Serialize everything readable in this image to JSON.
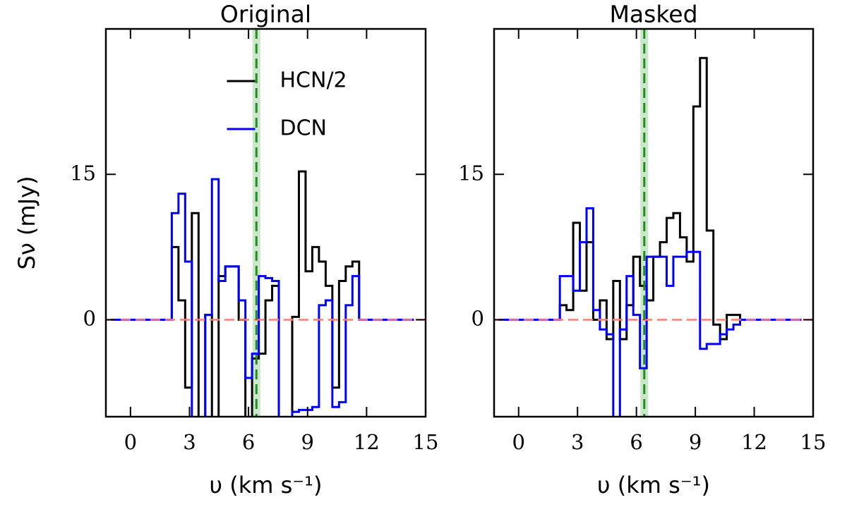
{
  "chart_data": [
    {
      "type": "line",
      "title": "Original",
      "xlabel": "υ (km s⁻¹)",
      "ylabel": "Sν (mJy)",
      "xlim": [
        -1.25,
        15
      ],
      "ylim": [
        -10,
        30
      ],
      "xticks": [
        0,
        3,
        6,
        9,
        12,
        15
      ],
      "yticks": [
        0,
        15
      ],
      "vline": 6.4,
      "vband": [
        6.2,
        6.6
      ],
      "hline": 0,
      "legend": "upper center",
      "x": [
        -1,
        2.1,
        2.44,
        2.78,
        3.12,
        3.46,
        3.8,
        4.14,
        4.48,
        4.82,
        5.16,
        5.5,
        5.84,
        6.18,
        6.52,
        6.86,
        7.2,
        7.54,
        7.88,
        8.22,
        8.56,
        8.9,
        9.24,
        9.58,
        9.92,
        10.26,
        10.6,
        10.94,
        11.28,
        11.62,
        14.4
      ],
      "series": [
        {
          "name": "HCN/2",
          "color": "#000000",
          "values": [
            0,
            7.5,
            2,
            -7,
            11,
            -12,
            0.5,
            -12,
            4.5,
            5.5,
            5.5,
            0,
            -12,
            -4,
            -3.5,
            2,
            3.5,
            -12,
            -12,
            0.3,
            15.3,
            5,
            7.5,
            6,
            3.5,
            -7,
            4,
            5.5,
            6,
            0,
            0
          ]
        },
        {
          "name": "DCN",
          "color": "#0000ff",
          "values": [
            0,
            11,
            13,
            6,
            -12,
            -12,
            0.5,
            14.5,
            4,
            5.5,
            5.5,
            2,
            -6,
            -3.5,
            4.5,
            4.3,
            4,
            -12,
            -12,
            -9.5,
            -9.3,
            -9.3,
            -9,
            1.5,
            2,
            -9,
            -8.5,
            1.5,
            4.5,
            0,
            0
          ]
        }
      ]
    },
    {
      "type": "line",
      "title": "Masked",
      "xlabel": "υ (km s⁻¹)",
      "xlim": [
        -1.25,
        15
      ],
      "ylim": [
        -10,
        30
      ],
      "xticks": [
        0,
        3,
        6,
        9,
        12,
        15
      ],
      "yticks": [
        0,
        15
      ],
      "vline": 6.4,
      "vband": [
        6.2,
        6.6
      ],
      "hline": 0,
      "x": [
        -1,
        2.1,
        2.44,
        2.78,
        3.12,
        3.46,
        3.8,
        4.14,
        4.48,
        4.82,
        5.16,
        5.5,
        5.84,
        6.18,
        6.52,
        6.86,
        7.2,
        7.54,
        7.88,
        8.22,
        8.56,
        8.9,
        9.24,
        9.58,
        9.92,
        10.26,
        10.6,
        10.94,
        11.28,
        11.62,
        14.4
      ],
      "series": [
        {
          "color": "#000000",
          "values": [
            0,
            1.5,
            1,
            10,
            3,
            8,
            0,
            2,
            -2,
            4,
            -2,
            1.5,
            6.5,
            3.5,
            2,
            6.5,
            8,
            10.5,
            11,
            8.5,
            6,
            22,
            27,
            9.2,
            -0.5,
            -2,
            0.5,
            0.5,
            0,
            0,
            0
          ]
        },
        {
          "color": "#0000ff",
          "values": [
            0,
            4.5,
            4.5,
            3,
            8,
            11.5,
            1,
            -1,
            -1.5,
            -12,
            -1,
            4.5,
            0.5,
            -5,
            6.5,
            6.5,
            6.5,
            3.5,
            6.5,
            6.5,
            7,
            7,
            -3,
            -2.5,
            -2.5,
            -1.5,
            -1,
            -0.5,
            0,
            0,
            0
          ]
        }
      ]
    }
  ]
}
